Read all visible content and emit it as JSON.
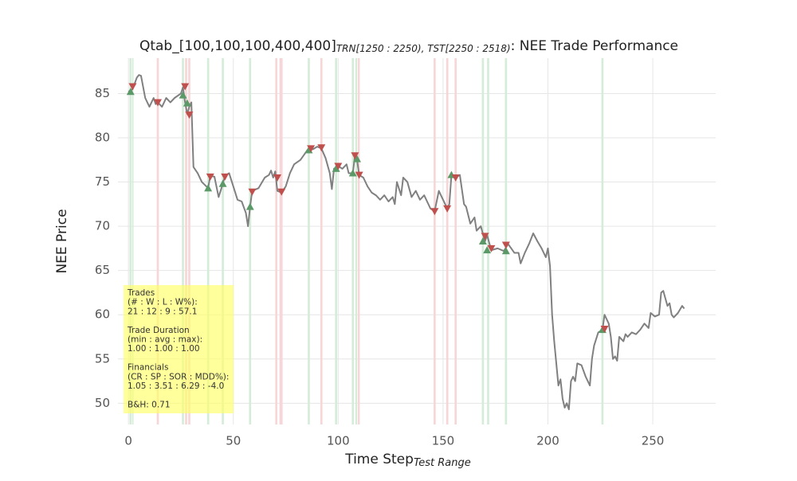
{
  "chart_data": {
    "type": "line",
    "title": {
      "main": "Qtab_[100,100,100,400,400]",
      "sub": "TRN[1250 : 2250), TST[2250 : 2518)",
      "tail": ": NEE Trade Performance"
    },
    "x_label": {
      "main": "Time Step",
      "sub": "Test Range"
    },
    "y_label": "NEE Price",
    "xlim": [
      -5,
      280
    ],
    "ylim": [
      47.6,
      89
    ],
    "xticks": [
      0,
      50,
      100,
      150,
      200,
      250
    ],
    "yticks": [
      50,
      55,
      60,
      65,
      70,
      75,
      80,
      85
    ],
    "grid": true,
    "series": [
      {
        "name": "NEE",
        "color": "#808080",
        "x": [
          0,
          2,
          4,
          5,
          6,
          8,
          10,
          12,
          13,
          14,
          16,
          18,
          20,
          22,
          25,
          26,
          27,
          28,
          29,
          30,
          31,
          33,
          35,
          38,
          39,
          41,
          43,
          45,
          46,
          48,
          50,
          52,
          54,
          56,
          57,
          58,
          59,
          62,
          65,
          67,
          68,
          69,
          70,
          71,
          73,
          75,
          77,
          79,
          82,
          85,
          86,
          88,
          90,
          92,
          94,
          96,
          97,
          98,
          100,
          102,
          104,
          105,
          107,
          108,
          109,
          110,
          112,
          114,
          116,
          118,
          120,
          122,
          124,
          126,
          127,
          128,
          130,
          131,
          133,
          135,
          137,
          139,
          141,
          142,
          144,
          146,
          148,
          150,
          152,
          153,
          154,
          156,
          158,
          160,
          161,
          163,
          165,
          166,
          168,
          170,
          171,
          173,
          176,
          179,
          181,
          184,
          186,
          187,
          189,
          191,
          193,
          195,
          197,
          199,
          200,
          201,
          202,
          203,
          205,
          206,
          207,
          208,
          209,
          210,
          211,
          212,
          213,
          214,
          216,
          218,
          220,
          221,
          222,
          224,
          226,
          227,
          229,
          230,
          231,
          232,
          233,
          234,
          236,
          237,
          238,
          240,
          242,
          244,
          246,
          248,
          249,
          251,
          253,
          254,
          255,
          257,
          258,
          259,
          260,
          262,
          264,
          265
        ],
        "values": [
          85.2,
          85.5,
          86.8,
          87.1,
          87,
          84.5,
          83.5,
          84.5,
          83.8,
          84,
          83.5,
          84.5,
          84,
          84.5,
          85,
          85.7,
          84,
          82.7,
          83.5,
          84,
          76.7,
          76,
          75,
          74.3,
          75.7,
          75.6,
          73.3,
          74.8,
          75.7,
          76,
          74.5,
          73,
          72.8,
          71.5,
          70,
          72.2,
          74,
          74.3,
          75.5,
          75.8,
          76.3,
          75.5,
          76.2,
          74,
          73.8,
          74.5,
          76,
          77,
          77.5,
          78.5,
          78.8,
          78.7,
          79,
          78.8,
          77.7,
          76,
          74.2,
          76.5,
          76.8,
          76.5,
          77,
          76,
          76,
          78,
          77.5,
          75.8,
          75.5,
          74.5,
          73.8,
          73.5,
          73,
          73.5,
          72.8,
          73.3,
          72.5,
          75,
          73.5,
          75.5,
          75,
          73.3,
          74,
          73,
          73.5,
          73,
          72,
          71.7,
          74,
          73,
          72,
          72.5,
          75.8,
          75.5,
          75.8,
          72.5,
          72.2,
          70.3,
          71,
          69.5,
          70,
          68.3,
          69,
          67.3,
          67.5,
          67.2,
          68,
          67,
          67,
          65.8,
          67,
          68,
          69.2,
          68.3,
          67.5,
          66.5,
          67.5,
          65.5,
          60,
          57,
          52,
          52.7,
          50.5,
          49.5,
          50,
          49.3,
          52.5,
          53,
          52.5,
          54.5,
          54.3,
          53,
          52,
          55,
          56.5,
          58,
          58.3,
          60,
          59,
          57.5,
          55,
          55.3,
          54.8,
          57.5,
          57,
          57.8,
          57.5,
          58,
          57.8,
          58.3,
          59,
          58.5,
          60.2,
          59.8,
          60,
          62.5,
          62.7,
          61,
          61.3,
          60,
          59.7,
          60.2,
          61,
          60.7
        ]
      }
    ],
    "buys": {
      "color": "#5b9a68",
      "x": [
        1,
        26,
        28,
        38,
        45,
        58,
        86,
        99,
        107,
        109,
        154,
        169,
        171,
        180,
        226
      ],
      "values": [
        85.2,
        84.8,
        83.9,
        74.3,
        74.8,
        72.2,
        78.6,
        76.5,
        76,
        77.6,
        75.8,
        68.3,
        67.3,
        67.2,
        58.3
      ]
    },
    "sells": {
      "color": "#c0504d",
      "x": [
        2,
        14,
        27,
        29,
        39,
        46,
        59,
        71,
        73,
        87,
        92,
        100,
        108,
        110,
        146,
        152,
        156,
        170,
        173,
        180,
        227
      ],
      "values": [
        85.8,
        84,
        85.8,
        82.6,
        75.6,
        75.6,
        73.9,
        75.5,
        73.9,
        78.8,
        78.9,
        76.8,
        78,
        75.8,
        71.7,
        72,
        75.5,
        68.9,
        67.5,
        67.9,
        58.4
      ]
    },
    "buy_spans": {
      "color": "#d5ecd9",
      "ranges": [
        [
          0.5,
          1.5
        ],
        [
          1.8,
          2.4
        ],
        [
          25.5,
          26.5
        ],
        [
          37.5,
          38.5
        ],
        [
          44.5,
          45.5
        ],
        [
          57.5,
          58.5
        ],
        [
          85.5,
          86.5
        ],
        [
          98.5,
          99.5
        ],
        [
          106.5,
          107.5
        ],
        [
          108.2,
          109
        ],
        [
          168.5,
          169.5
        ],
        [
          171,
          172
        ],
        [
          179.5,
          180.5
        ],
        [
          225.5,
          226.5
        ]
      ]
    },
    "sell_spans": {
      "color": "#f6d6d6",
      "ranges": [
        [
          13.5,
          14.5
        ],
        [
          27,
          28
        ],
        [
          28.5,
          29.5
        ],
        [
          70,
          71
        ],
        [
          72,
          73.5
        ],
        [
          91.5,
          92.5
        ],
        [
          109.3,
          110.3
        ],
        [
          145.5,
          146.5
        ],
        [
          151.5,
          152.5
        ],
        [
          155.5,
          156.5
        ]
      ]
    },
    "annotation": [
      [
        "Trades",
        "(# : W : L : W%):",
        "21 : 12 : 9 : 57.1"
      ],
      [
        "Trade Duration",
        "(min : avg : max):",
        "1.00 : 1.00 : 1.00"
      ],
      [
        "Financials",
        "(CR : SP : SOR : MDD%):",
        "1.05 : 3.51 : 6.29 : -4.0"
      ],
      [
        "B&H: 0.71"
      ]
    ]
  }
}
